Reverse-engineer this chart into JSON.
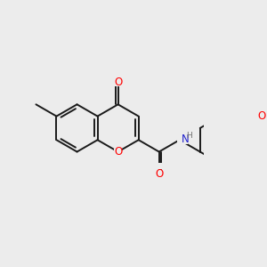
{
  "background_color": "#ececec",
  "bond_color": "#1a1a1a",
  "bond_width": 1.4,
  "atom_colors": {
    "O": "#ff0000",
    "N": "#2020cc",
    "H": "#707070"
  },
  "font_size": 7.0
}
